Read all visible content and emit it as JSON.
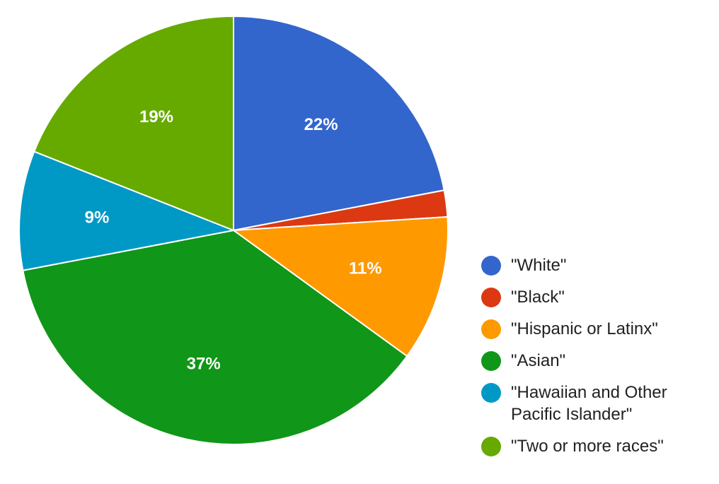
{
  "chart_data": {
    "type": "pie",
    "title": "",
    "start_angle_deg": 0,
    "direction": "clockwise",
    "legend_position": "right",
    "slices": [
      {
        "label": "\"White\"",
        "value": 22,
        "display": "22%",
        "color": "#3366cc"
      },
      {
        "label": "\"Black\"",
        "value": 2,
        "display": "",
        "color": "#dc3912"
      },
      {
        "label": "\"Hispanic or Latinx\"",
        "value": 11,
        "display": "11%",
        "color": "#ff9900"
      },
      {
        "label": "\"Asian\"",
        "value": 37,
        "display": "37%",
        "color": "#109618"
      },
      {
        "label": "\"Hawaiian and Other\nPacific Islander\"",
        "value": 9,
        "display": "9%",
        "color": "#0099c6"
      },
      {
        "label": "\"Two or more races\"",
        "value": 19,
        "display": "19%",
        "color": "#66aa00"
      }
    ]
  }
}
